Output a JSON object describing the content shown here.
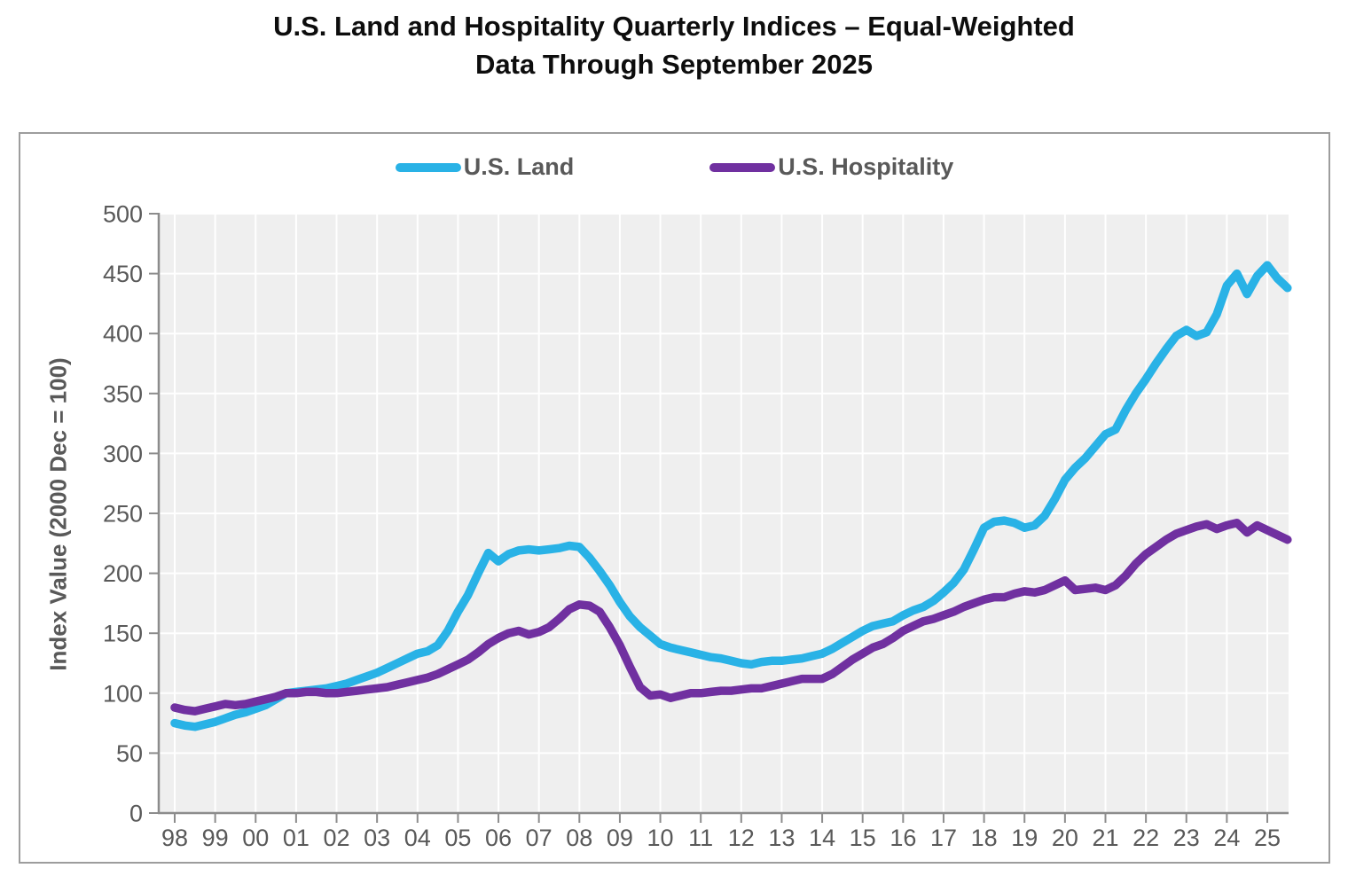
{
  "title": {
    "line1": "U.S. Land and Hospitality Quarterly Indices – Equal-Weighted",
    "line2": "Data Through September 2025"
  },
  "legend": [
    {
      "label": "U.S. Land",
      "color": "#29B2E6"
    },
    {
      "label": "U.S. Hospitality",
      "color": "#7030A0"
    }
  ],
  "y_axis": {
    "title": "Index Value (2000 Dec = 100)",
    "min": 0,
    "max": 500,
    "step": 50,
    "tick_labels": [
      "0",
      "50",
      "100",
      "150",
      "200",
      "250",
      "300",
      "350",
      "400",
      "450",
      "500"
    ]
  },
  "x_axis": {
    "tick_labels": [
      "98",
      "99",
      "00",
      "01",
      "02",
      "03",
      "04",
      "05",
      "06",
      "07",
      "08",
      "09",
      "10",
      "11",
      "12",
      "13",
      "14",
      "15",
      "16",
      "17",
      "18",
      "19",
      "20",
      "21",
      "22",
      "23",
      "24",
      "25"
    ]
  },
  "colors": {
    "plot_background": "#EFEFEF",
    "gridline": "#FFFFFF",
    "axis_line": "#8C8C8C",
    "tick_label": "#595959",
    "box_border": "#9D9D9D"
  },
  "chart_data": {
    "type": "line",
    "title": "U.S. Land and Hospitality Quarterly Indices – Equal-Weighted, Data Through September 2025",
    "frequency": "quarterly",
    "x_start": "1998 Q1",
    "x_end": "2025 Q3",
    "xlabel": "",
    "ylabel": "Index Value (2000 Dec = 100)",
    "ylim": [
      0,
      500
    ],
    "grid": true,
    "legend_position": "top-center",
    "series": [
      {
        "name": "U.S. Land",
        "color": "#29B2E6",
        "values": [
          75,
          73,
          72,
          74,
          76,
          79,
          82,
          84,
          87,
          90,
          95,
          100,
          101,
          102,
          103,
          104,
          106,
          108,
          111,
          114,
          117,
          121,
          125,
          129,
          133,
          135,
          140,
          152,
          168,
          182,
          200,
          217,
          210,
          216,
          219,
          220,
          219,
          220,
          221,
          223,
          222,
          213,
          202,
          190,
          176,
          164,
          155,
          148,
          141,
          138,
          136,
          134,
          132,
          130,
          129,
          127,
          125,
          124,
          126,
          127,
          127,
          128,
          129,
          131,
          133,
          137,
          142,
          147,
          152,
          156,
          158,
          160,
          165,
          169,
          172,
          177,
          184,
          192,
          203,
          220,
          238,
          243,
          244,
          242,
          238,
          240,
          248,
          262,
          278,
          288,
          296,
          306,
          316,
          320,
          336,
          350,
          362,
          375,
          387,
          398,
          403,
          398,
          401,
          416,
          440,
          450,
          433,
          448,
          457,
          446,
          438
        ]
      },
      {
        "name": "U.S. Hospitality",
        "color": "#7030A0",
        "values": [
          88,
          86,
          85,
          87,
          89,
          91,
          90,
          91,
          93,
          95,
          97,
          100,
          100,
          101,
          101,
          100,
          100,
          101,
          102,
          103,
          104,
          105,
          107,
          109,
          111,
          113,
          116,
          120,
          124,
          128,
          134,
          141,
          146,
          150,
          152,
          149,
          151,
          155,
          162,
          170,
          174,
          173,
          168,
          155,
          140,
          122,
          105,
          98,
          99,
          96,
          98,
          100,
          100,
          101,
          102,
          102,
          103,
          104,
          104,
          106,
          108,
          110,
          112,
          112,
          112,
          116,
          122,
          128,
          133,
          138,
          141,
          146,
          152,
          156,
          160,
          162,
          165,
          168,
          172,
          175,
          178,
          180,
          180,
          183,
          185,
          184,
          186,
          190,
          194,
          186,
          187,
          188,
          186,
          190,
          198,
          208,
          216,
          222,
          228,
          233,
          236,
          239,
          241,
          237,
          240,
          242,
          234,
          240,
          236,
          232,
          228
        ]
      }
    ]
  }
}
